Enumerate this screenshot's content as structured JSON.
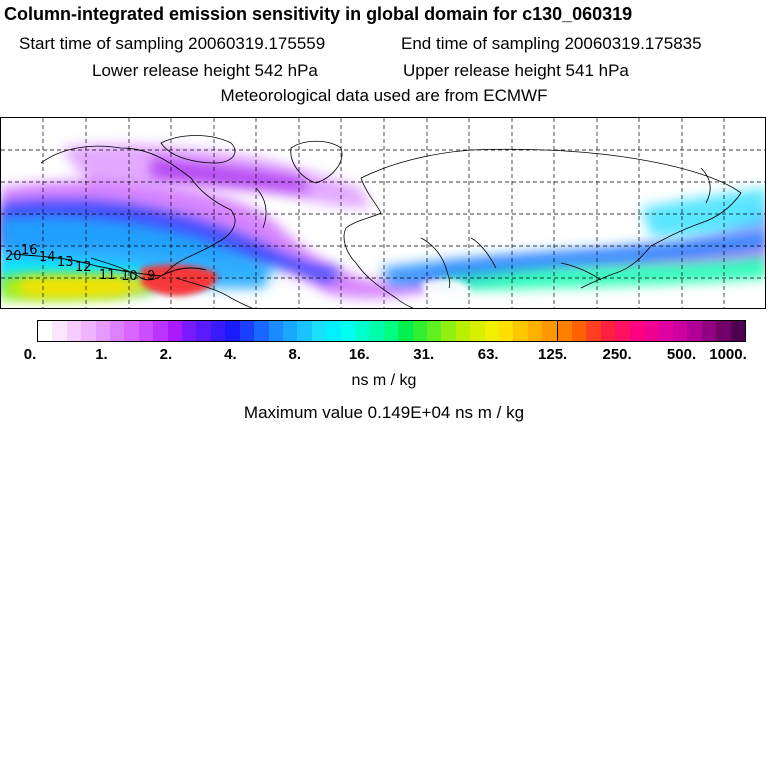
{
  "header": {
    "title": "Column-integrated emission sensitivity in global domain for c130_060319",
    "start_label": "Start time of sampling 20060319.175559",
    "end_label": "End time of sampling 20060319.175835",
    "lower_label": "Lower release height  542 hPa",
    "upper_label": "Upper release height  541 hPa",
    "met_label": "Meteorological data used are from ECMWF"
  },
  "map": {
    "contour_labels": [
      "20",
      "16",
      "14",
      "13",
      "12",
      "11",
      "10",
      "9"
    ]
  },
  "colorbar": {
    "ticks": [
      "0.",
      "1.",
      "2.",
      "4.",
      "8.",
      "16.",
      "31.",
      "63.",
      "125.",
      "250.",
      "500.",
      "1000."
    ],
    "colors": [
      "#ffffff",
      "#fae6ff",
      "#f5ccff",
      "#f0b3ff",
      "#e699ff",
      "#dd80ff",
      "#d966ff",
      "#cc4dff",
      "#bb33ff",
      "#aa1aff",
      "#7a1aff",
      "#5a1aff",
      "#3a1aff",
      "#1a1aff",
      "#1a40ff",
      "#1a66ff",
      "#1a8cff",
      "#1aa8ff",
      "#1ac4ff",
      "#1ae0ff",
      "#00f0ff",
      "#00ffee",
      "#00ffcc",
      "#00ffaa",
      "#00ff80",
      "#00f050",
      "#30f030",
      "#60f020",
      "#90f010",
      "#b8f000",
      "#d8f000",
      "#f0f000",
      "#ffe000",
      "#ffc800",
      "#ffb000",
      "#ff9800",
      "#ff8000",
      "#ff6000",
      "#ff4020",
      "#ff2040",
      "#ff1060",
      "#ff0080",
      "#f00090",
      "#e000a0",
      "#cc00a0",
      "#b00098",
      "#900080",
      "#700068",
      "#500050"
    ],
    "units": "ns m / kg",
    "max_text": "Maximum value  0.149E+04 ns m / kg"
  }
}
